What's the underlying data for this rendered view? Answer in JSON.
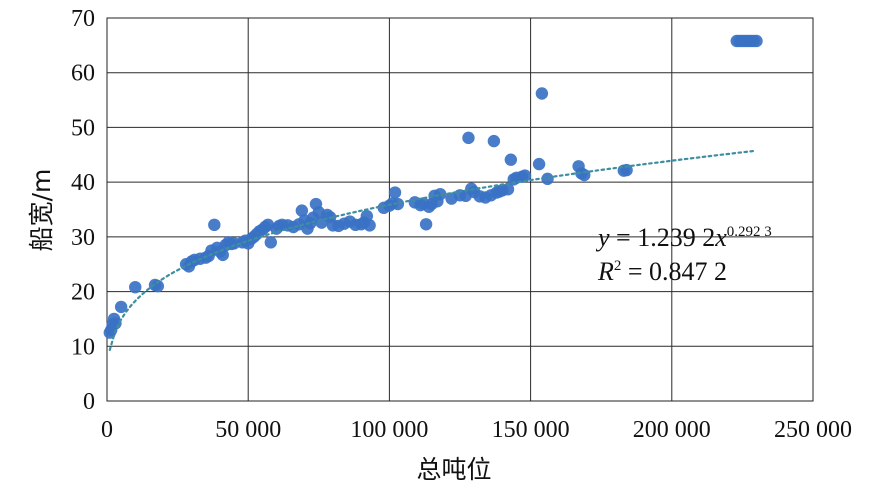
{
  "chart_data": {
    "type": "scatter",
    "title": "",
    "xlabel": "总吨位",
    "ylabel": "船宽/m",
    "xlim": [
      0,
      250000
    ],
    "ylim": [
      0,
      70
    ],
    "x_ticks": [
      {
        "value": 0,
        "label": "0"
      },
      {
        "value": 50000,
        "label": "50 000"
      },
      {
        "value": 100000,
        "label": "100 000"
      },
      {
        "value": 150000,
        "label": "150 000"
      },
      {
        "value": 200000,
        "label": "200 000"
      },
      {
        "value": 250000,
        "label": "250 000"
      }
    ],
    "y_ticks": [
      {
        "value": 0,
        "label": "0"
      },
      {
        "value": 10,
        "label": "10"
      },
      {
        "value": 20,
        "label": "20"
      },
      {
        "value": 30,
        "label": "30"
      },
      {
        "value": 40,
        "label": "40"
      },
      {
        "value": 50,
        "label": "50"
      },
      {
        "value": 60,
        "label": "60"
      },
      {
        "value": 70,
        "label": "70"
      }
    ],
    "grid": true,
    "series": [
      {
        "color": "#3a72c4",
        "points": [
          [
            1000,
            12.5
          ],
          [
            1500,
            13
          ],
          [
            2000,
            14
          ],
          [
            2500,
            15
          ],
          [
            3000,
            14.2
          ],
          [
            5000,
            17.2
          ],
          [
            10000,
            20.8
          ],
          [
            17000,
            21.2
          ],
          [
            18000,
            21
          ],
          [
            28000,
            25
          ],
          [
            29000,
            24.6
          ],
          [
            30000,
            25.5
          ],
          [
            31000,
            25.8
          ],
          [
            33000,
            26
          ],
          [
            35000,
            26.2
          ],
          [
            36000,
            26.5
          ],
          [
            37000,
            27.5
          ],
          [
            38000,
            32.2
          ],
          [
            39000,
            28
          ],
          [
            40000,
            27.3
          ],
          [
            41000,
            26.7
          ],
          [
            42000,
            28.5
          ],
          [
            43000,
            29
          ],
          [
            44000,
            28.7
          ],
          [
            45000,
            28.8
          ],
          [
            48000,
            29
          ],
          [
            49000,
            29.3
          ],
          [
            50000,
            28.8
          ],
          [
            51000,
            29.6
          ],
          [
            52000,
            30
          ],
          [
            53000,
            30.5
          ],
          [
            54000,
            31
          ],
          [
            55000,
            31.3
          ],
          [
            56000,
            31.8
          ],
          [
            57000,
            32.2
          ],
          [
            58000,
            29
          ],
          [
            60000,
            31.5
          ],
          [
            61000,
            32
          ],
          [
            62000,
            32.2
          ],
          [
            64000,
            32.1
          ],
          [
            66000,
            31.8
          ],
          [
            68000,
            32.3
          ],
          [
            69000,
            34.8
          ],
          [
            70000,
            33
          ],
          [
            71000,
            31.5
          ],
          [
            72000,
            32.5
          ],
          [
            73000,
            33.5
          ],
          [
            74000,
            36
          ],
          [
            75000,
            34.5
          ],
          [
            76000,
            32.6
          ],
          [
            78000,
            34
          ],
          [
            79000,
            33.6
          ],
          [
            80000,
            32.1
          ],
          [
            82000,
            32
          ],
          [
            84000,
            32.4
          ],
          [
            86000,
            32.8
          ],
          [
            88000,
            32.2
          ],
          [
            90000,
            32.3
          ],
          [
            91000,
            32.6
          ],
          [
            92000,
            33.8
          ],
          [
            93000,
            32.1
          ],
          [
            98000,
            35.3
          ],
          [
            100000,
            35.7
          ],
          [
            101000,
            36.1
          ],
          [
            102000,
            38.1
          ],
          [
            103000,
            36
          ],
          [
            109000,
            36.3
          ],
          [
            111000,
            35.8
          ],
          [
            112000,
            36.1
          ],
          [
            113000,
            32.3
          ],
          [
            114000,
            35.5
          ],
          [
            115000,
            36
          ],
          [
            116000,
            37.5
          ],
          [
            117000,
            36.5
          ],
          [
            118000,
            37.8
          ],
          [
            122000,
            37
          ],
          [
            125000,
            37.6
          ],
          [
            127000,
            37.5
          ],
          [
            128000,
            48.1
          ],
          [
            129000,
            38.8
          ],
          [
            130000,
            38.2
          ],
          [
            132000,
            37.4
          ],
          [
            134000,
            37.2
          ],
          [
            136000,
            37.6
          ],
          [
            137000,
            47.5
          ],
          [
            138000,
            38.1
          ],
          [
            139000,
            38.3
          ],
          [
            140000,
            38.5
          ],
          [
            142000,
            38.7
          ],
          [
            143000,
            44.1
          ],
          [
            144000,
            40.5
          ],
          [
            145000,
            40.8
          ],
          [
            147000,
            41
          ],
          [
            148000,
            41.2
          ],
          [
            153000,
            43.3
          ],
          [
            154000,
            56.2
          ],
          [
            156000,
            40.6
          ],
          [
            167000,
            42.9
          ],
          [
            168000,
            41.6
          ],
          [
            169000,
            41.3
          ],
          [
            183000,
            42.1
          ],
          [
            184000,
            42.2
          ],
          [
            223000,
            65.8
          ],
          [
            224000,
            65.8
          ],
          [
            225000,
            65.8
          ],
          [
            226000,
            65.8
          ],
          [
            227000,
            65.8
          ],
          [
            228000,
            65.8
          ],
          [
            229000,
            65.8
          ],
          [
            230000,
            65.8
          ]
        ]
      }
    ],
    "trendline": {
      "type": "power",
      "coefficient": 1.2392,
      "exponent": 0.2923,
      "r_squared": 0.8472,
      "color": "#3d8ea0",
      "style": "dotted",
      "x_range": [
        1000,
        229000
      ]
    },
    "equation_text": {
      "y_var": "y",
      "eq_mid": " = 1.239 2",
      "x_var": "x",
      "exp": "0.292 3",
      "r_var": "R",
      "r_sup": "2",
      "r_val": " = 0.847 2"
    }
  }
}
